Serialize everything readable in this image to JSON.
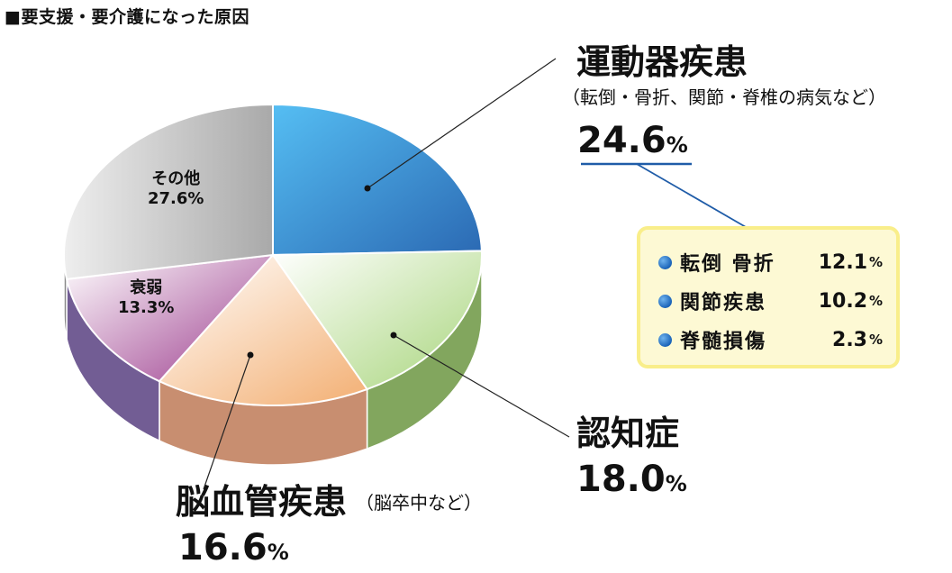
{
  "title": "■要支援・要介護になった原因",
  "chart_data": {
    "type": "pie",
    "title": "■要支援・要介護になった原因",
    "unit": "%",
    "slices": [
      {
        "label": "運動器疾患",
        "sublabel": "（転倒・骨折、関節・脊椎の病気など）",
        "value": 24.6,
        "color": "#3c8dd6"
      },
      {
        "label": "認知症",
        "sublabel": "",
        "value": 18.0,
        "color": "#b4d98e"
      },
      {
        "label": "脳血管疾患",
        "sublabel": "（脳卒中など）",
        "value": 16.6,
        "color": "#f5c49c"
      },
      {
        "label": "衰弱",
        "sublabel": "",
        "value": 13.3,
        "color": "#b0529c"
      },
      {
        "label": "その他",
        "sublabel": "",
        "value": 27.6,
        "color": "#c4c4c4"
      }
    ],
    "breakdown": {
      "parent": "運動器疾患",
      "items": [
        {
          "label": "転倒 骨折",
          "value": 12.1
        },
        {
          "label": "関節疾患",
          "value": 10.2
        },
        {
          "label": "脊髄損傷",
          "value": 2.3
        }
      ]
    }
  },
  "labels": {
    "musculo_name": "運動器疾患",
    "musculo_sub": "（転倒・骨折、関節・脊椎の病気など）",
    "musculo_pct": "24.6",
    "dementia_name": "認知症",
    "dementia_pct": "18.0",
    "cerebro_name": "脳血管疾患",
    "cerebro_sub": "（脳卒中など）",
    "cerebro_pct": "16.6",
    "weakness_name": "衰弱",
    "weakness_pct": "13.3%",
    "other_name": "その他",
    "other_pct": "27.6%",
    "pct_symbol": "%",
    "bd1_label": "転倒 骨折",
    "bd1_value": "12.1",
    "bd2_label": "関節疾患",
    "bd2_value": "10.2",
    "bd3_label": "脊髄損傷",
    "bd3_value": "2.3"
  }
}
